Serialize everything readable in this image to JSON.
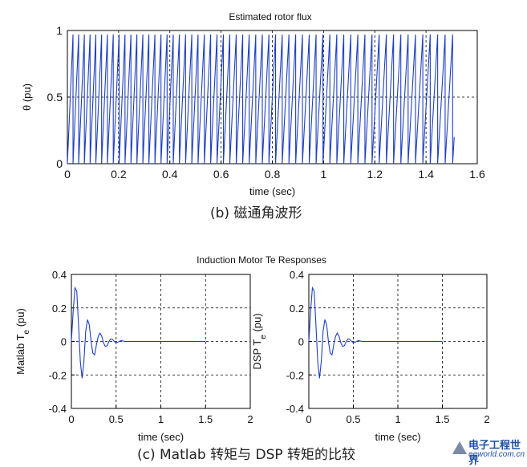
{
  "chart_data": [
    {
      "id": "flux",
      "type": "line",
      "title": "Estimated rotor flux",
      "xlabel": "time (sec)",
      "ylabel": "θ (pu)",
      "xlim": [
        0,
        1.6
      ],
      "ylim": [
        0,
        1
      ],
      "xticks": [
        "0",
        "0.2",
        "0.4",
        "0.6",
        "0.8",
        "1",
        "1.2",
        "1.4",
        "1.6"
      ],
      "yticks": [
        "0",
        "0.5",
        "1"
      ],
      "grid": true,
      "series": [
        {
          "color": "#1f3fbf",
          "shape": "sawtooth",
          "t_end": 1.51,
          "period_start": 0.022,
          "period_end": 0.0295,
          "min": 0,
          "max": 0.97
        }
      ]
    },
    {
      "id": "te_matlab",
      "type": "line",
      "title": "Induction Motor Te Responses",
      "xlabel": "time (sec)",
      "ylabel": "Matlab T",
      "ylabel_sub": "e",
      "ylabel_unit": " (pu)",
      "xlim": [
        0,
        2
      ],
      "ylim": [
        -0.4,
        0.4
      ],
      "xticks": [
        "0",
        "0.5",
        "1",
        "1.5",
        "2"
      ],
      "yticks": [
        "0.4",
        "0.2",
        "0",
        "-0.2",
        "-0.4"
      ],
      "grid": true,
      "series": [
        {
          "color": "#1f3fbf",
          "x": [
            0,
            0.02,
            0.04,
            0.06,
            0.08,
            0.1,
            0.12,
            0.14,
            0.16,
            0.18,
            0.2,
            0.22,
            0.24,
            0.26,
            0.28,
            0.3,
            0.32,
            0.34,
            0.36,
            0.38,
            0.4,
            0.42,
            0.44,
            0.46,
            0.48,
            0.5,
            0.52,
            0.54,
            0.56,
            0.58,
            0.6,
            0.62,
            0.65,
            1.5
          ],
          "y": [
            0,
            0.18,
            0.32,
            0.3,
            0.1,
            -0.12,
            -0.22,
            -0.12,
            0.06,
            0.13,
            0.1,
            0.0,
            -0.07,
            -0.08,
            -0.02,
            0.03,
            0.05,
            0.03,
            -0.01,
            -0.03,
            -0.025,
            0.0,
            0.015,
            0.012,
            0.0,
            -0.008,
            -0.005,
            0.002,
            0.005,
            0.002,
            0.0,
            0.0,
            0.0,
            0.0
          ]
        }
      ]
    },
    {
      "id": "te_dsp",
      "type": "line",
      "title": "",
      "xlabel": "time (sec)",
      "ylabel": "DSP T",
      "ylabel_sub": "e",
      "ylabel_unit": " (pu)",
      "xlim": [
        0,
        2
      ],
      "ylim": [
        -0.4,
        0.4
      ],
      "xticks": [
        "0",
        "0.5",
        "1",
        "1.5",
        "2"
      ],
      "yticks": [
        "0.4",
        "0.2",
        "0",
        "-0.2",
        "-0.4"
      ],
      "grid": true,
      "series": [
        {
          "color": "#1f3fbf",
          "x": [
            0,
            0.02,
            0.04,
            0.06,
            0.08,
            0.1,
            0.12,
            0.14,
            0.16,
            0.18,
            0.2,
            0.22,
            0.24,
            0.26,
            0.28,
            0.3,
            0.32,
            0.34,
            0.36,
            0.38,
            0.4,
            0.42,
            0.44,
            0.46,
            0.48,
            0.5,
            0.52,
            0.54,
            0.56,
            0.58,
            0.6,
            0.62,
            0.65,
            1.5
          ],
          "y": [
            0,
            0.18,
            0.32,
            0.3,
            0.1,
            -0.12,
            -0.22,
            -0.12,
            0.06,
            0.13,
            0.1,
            0.0,
            -0.07,
            -0.08,
            -0.02,
            0.03,
            0.05,
            0.03,
            -0.01,
            -0.03,
            -0.025,
            0.0,
            0.015,
            0.012,
            0.0,
            -0.008,
            -0.005,
            0.002,
            0.005,
            0.002,
            0.0,
            0.0,
            0.0,
            0.0
          ]
        }
      ]
    }
  ],
  "captions": {
    "b": "(b)  磁通角波形",
    "c": "(c)  Matlab 转矩与 DSP 转矩的比较"
  },
  "logo": {
    "line1": "电子工程世界",
    "line2": "eeworld.com.cn"
  }
}
